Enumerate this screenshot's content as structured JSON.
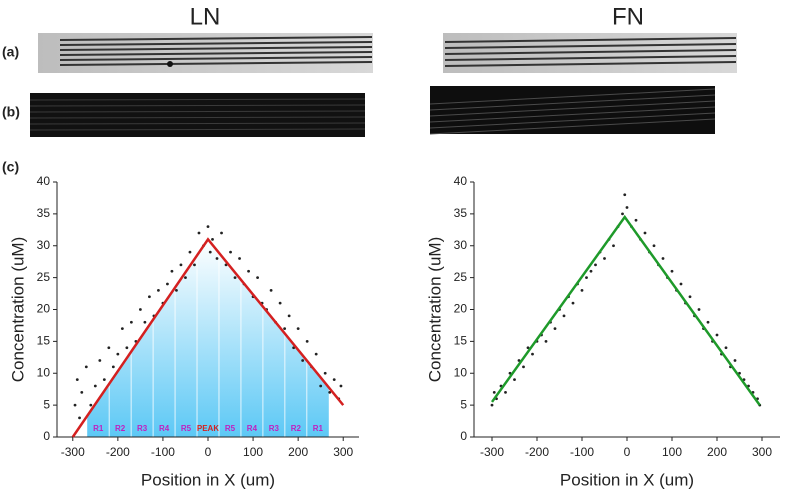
{
  "panel_labels": [
    "(a)",
    "(b)",
    "(c)"
  ],
  "chart_data": [
    {
      "type": "scatter",
      "title": "LN",
      "xlabel": "Position in X (um)",
      "ylabel": "Concentration (uM)",
      "xlim": [
        -335,
        335
      ],
      "ylim": [
        0,
        40
      ],
      "xticks": [
        -300,
        -200,
        -100,
        0,
        100,
        200,
        300
      ],
      "yticks": [
        0,
        5,
        10,
        15,
        20,
        25,
        30,
        35,
        40
      ],
      "annotations": [
        "R1",
        "R2",
        "R3",
        "R4",
        "R5",
        "PEAK",
        "R5",
        "R4",
        "R3",
        "R2",
        "R1"
      ],
      "series": [
        {
          "mode": "markers",
          "color": "#222222",
          "x": [
            -295,
            -290,
            -285,
            -280,
            -270,
            -260,
            -250,
            -240,
            -230,
            -220,
            -210,
            -200,
            -190,
            -180,
            -170,
            -160,
            -150,
            -140,
            -130,
            -120,
            -110,
            -100,
            -90,
            -80,
            -70,
            -60,
            -50,
            -40,
            -30,
            -20,
            -10,
            0,
            5,
            10,
            20,
            30,
            40,
            50,
            60,
            70,
            80,
            90,
            100,
            110,
            120,
            130,
            140,
            150,
            160,
            170,
            180,
            190,
            200,
            210,
            220,
            230,
            240,
            250,
            260,
            270,
            280,
            290,
            295
          ],
          "values": [
            5,
            9,
            3,
            7,
            11,
            5,
            8,
            12,
            9,
            14,
            11,
            13,
            17,
            14,
            18,
            15,
            20,
            18,
            22,
            19,
            23,
            21,
            24,
            26,
            23,
            27,
            25,
            29,
            27,
            32,
            30,
            33,
            29,
            31,
            28,
            32,
            27,
            29,
            25,
            28,
            24,
            26,
            22,
            25,
            21,
            20,
            23,
            18,
            21,
            17,
            19,
            14,
            17,
            12,
            15,
            11,
            13,
            8,
            10,
            7,
            9,
            6,
            8
          ]
        },
        {
          "mode": "line",
          "color": "#d42020",
          "x": [
            -300,
            0,
            300
          ],
          "values": [
            0,
            31,
            5
          ]
        }
      ]
    },
    {
      "type": "scatter",
      "title": "FN",
      "xlabel": "Position in X (um)",
      "ylabel": "Concentration (uM)",
      "xlim": [
        -340,
        340
      ],
      "ylim": [
        0,
        40
      ],
      "xticks": [
        -300,
        -200,
        -100,
        0,
        100,
        200,
        300
      ],
      "yticks": [
        0,
        5,
        10,
        15,
        20,
        25,
        30,
        35,
        40
      ],
      "series": [
        {
          "mode": "markers",
          "color": "#222222",
          "x": [
            -300,
            -295,
            -290,
            -280,
            -270,
            -260,
            -250,
            -240,
            -230,
            -220,
            -210,
            -200,
            -190,
            -180,
            -170,
            -160,
            -150,
            -140,
            -130,
            -120,
            -110,
            -100,
            -90,
            -80,
            -70,
            -60,
            -50,
            -40,
            -30,
            -20,
            -10,
            -5,
            0,
            10,
            20,
            30,
            40,
            50,
            60,
            70,
            80,
            90,
            100,
            110,
            120,
            130,
            140,
            150,
            160,
            170,
            180,
            190,
            200,
            210,
            220,
            230,
            240,
            250,
            260,
            270,
            280,
            290,
            295
          ],
          "values": [
            5,
            7,
            6,
            8,
            7,
            10,
            9,
            12,
            11,
            14,
            13,
            15,
            16,
            15,
            18,
            17,
            20,
            19,
            22,
            21,
            24,
            23,
            25,
            26,
            27,
            29,
            28,
            31,
            30,
            33,
            35,
            38,
            36,
            33,
            34,
            31,
            32,
            29,
            30,
            27,
            28,
            25,
            26,
            23,
            24,
            21,
            22,
            19,
            20,
            17,
            18,
            15,
            16,
            13,
            14,
            11,
            12,
            10,
            9,
            8,
            7,
            6,
            5
          ]
        },
        {
          "mode": "line",
          "color": "#1e9a2a",
          "x": [
            -300,
            -5,
            295
          ],
          "values": [
            5.5,
            34.5,
            5
          ]
        }
      ]
    }
  ]
}
